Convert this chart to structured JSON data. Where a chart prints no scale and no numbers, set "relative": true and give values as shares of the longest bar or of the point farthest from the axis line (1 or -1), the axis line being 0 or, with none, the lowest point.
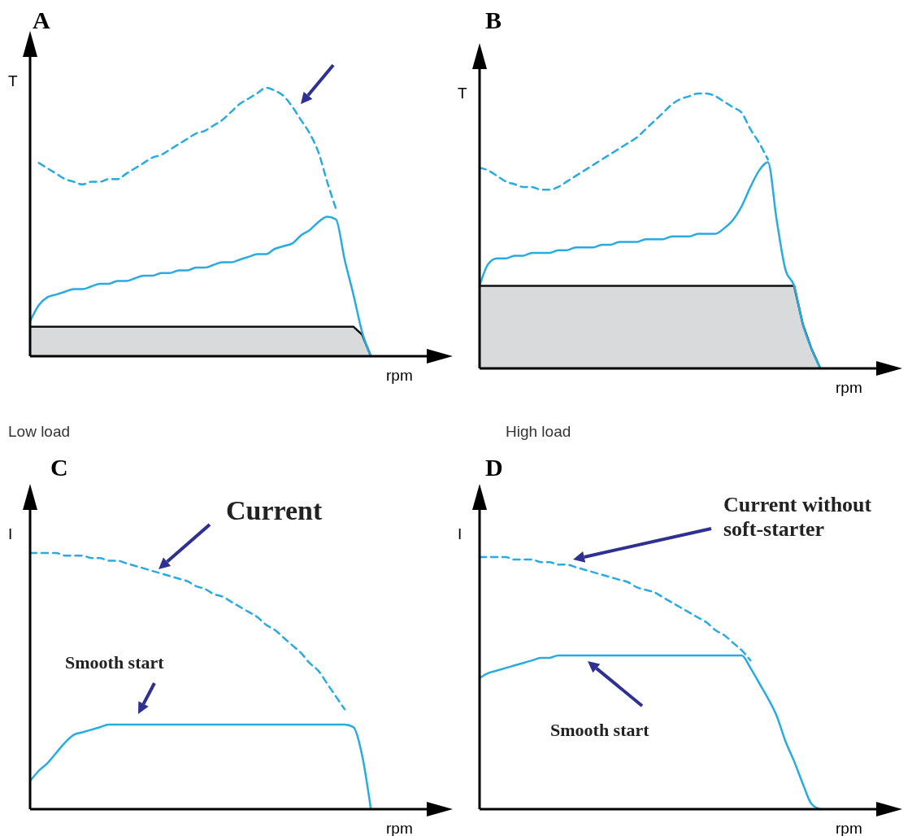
{
  "chart_data": [
    {
      "type": "line",
      "relative": true,
      "title": "A",
      "xlabel": "rpm",
      "ylabel": "T",
      "categories": [
        null,
        null,
        null,
        null,
        null,
        null,
        null,
        null,
        null,
        null,
        null,
        null,
        null,
        null,
        null,
        null,
        null,
        null,
        null,
        null,
        null,
        null,
        null,
        null,
        null,
        null,
        null,
        null,
        null,
        null,
        null,
        null,
        null,
        null,
        null,
        null,
        null,
        null,
        null,
        null,
        null,
        null,
        null,
        null,
        null
      ],
      "series": [
        {
          "type": "area",
          "color": "#d9dadb",
          "values": [
            0.11,
            0.11,
            0.11,
            0.11,
            0.11,
            0.11,
            0.11,
            0.11,
            0.11,
            0.11,
            0.11,
            0.11,
            0.11,
            0.11,
            0.11,
            0.11,
            0.11,
            0.11,
            0.11,
            0.11,
            0.11,
            0.11,
            0.11,
            0.11,
            0.11,
            0.11,
            0.11,
            0.11,
            0.11,
            0.11,
            0.11,
            0.11,
            0.11,
            0.11,
            0.11,
            0.11,
            0.11,
            0.11,
            0.08,
            0,
            null,
            null,
            null,
            null,
            null
          ]
        },
        {
          "type": "line",
          "color": "#29abe2",
          "line_style": "dashed",
          "values": [
            null,
            0.72,
            0.7,
            0.68,
            0.66,
            0.65,
            0.64,
            0.65,
            0.65,
            0.66,
            0.66,
            0.68,
            0.7,
            0.72,
            0.74,
            0.75,
            0.77,
            0.79,
            0.81,
            0.83,
            0.84,
            0.86,
            0.88,
            0.91,
            0.94,
            0.96,
            0.98,
            1,
            0.99,
            0.97,
            0.93,
            0.88,
            0.83,
            0.76,
            0.65,
            0.55,
            null,
            null,
            null,
            null,
            null,
            null,
            null,
            null,
            null
          ]
        },
        {
          "type": "line",
          "color": "#29abe2",
          "line_style": "solid",
          "values": [
            0.13,
            0.19,
            0.22,
            0.23,
            0.24,
            0.25,
            0.25,
            0.26,
            0.27,
            0.27,
            0.28,
            0.28,
            0.29,
            0.3,
            0.3,
            0.31,
            0.31,
            0.32,
            0.32,
            0.33,
            0.33,
            0.34,
            0.35,
            0.35,
            0.36,
            0.37,
            0.38,
            0.38,
            0.4,
            0.41,
            0.42,
            0.45,
            0.47,
            0.5,
            0.52,
            0.51,
            0.36,
            0.23,
            0.09,
            0,
            null,
            null,
            null,
            null,
            null
          ]
        }
      ],
      "annotations": [
        "Low load"
      ]
    },
    {
      "type": "line",
      "relative": true,
      "title": "B",
      "xlabel": "rpm",
      "ylabel": "T",
      "categories": [
        null,
        null,
        null,
        null,
        null,
        null,
        null,
        null,
        null,
        null,
        null,
        null,
        null,
        null,
        null,
        null,
        null,
        null,
        null,
        null,
        null,
        null,
        null,
        null,
        null,
        null,
        null,
        null,
        null,
        null,
        null,
        null,
        null,
        null,
        null,
        null,
        null,
        null,
        null,
        null,
        null,
        null,
        null,
        null,
        null
      ],
      "series": [
        {
          "type": "area",
          "color": "#d9dadb",
          "values": [
            0.3,
            0.3,
            0.3,
            0.3,
            0.3,
            0.3,
            0.3,
            0.3,
            0.3,
            0.3,
            0.3,
            0.3,
            0.3,
            0.3,
            0.3,
            0.3,
            0.3,
            0.3,
            0.3,
            0.3,
            0.3,
            0.3,
            0.3,
            0.3,
            0.3,
            0.3,
            0.3,
            0.3,
            0.3,
            0.3,
            0.3,
            0.3,
            0.3,
            0.3,
            0.3,
            0.3,
            0.3,
            0.16,
            0.07,
            0,
            null,
            null,
            null,
            null,
            null
          ]
        },
        {
          "type": "line",
          "color": "#29abe2",
          "line_style": "dashed",
          "values": [
            0.73,
            0.72,
            0.7,
            0.68,
            0.67,
            0.66,
            0.66,
            0.65,
            0.65,
            0.66,
            0.68,
            0.7,
            0.72,
            0.74,
            0.76,
            0.78,
            0.8,
            0.82,
            0.84,
            0.87,
            0.9,
            0.93,
            0.96,
            0.98,
            0.99,
            1,
            1,
            0.99,
            0.97,
            0.95,
            0.93,
            0.87,
            0.82,
            0.76,
            null,
            null,
            null,
            null,
            null,
            null,
            null,
            null,
            null,
            null,
            null
          ]
        },
        {
          "type": "line",
          "color": "#29abe2",
          "line_style": "solid",
          "values": [
            0.3,
            0.38,
            0.4,
            0.4,
            0.41,
            0.41,
            0.42,
            0.42,
            0.42,
            0.43,
            0.43,
            0.44,
            0.44,
            0.44,
            0.45,
            0.45,
            0.46,
            0.46,
            0.46,
            0.47,
            0.47,
            0.47,
            0.48,
            0.48,
            0.48,
            0.49,
            0.49,
            0.49,
            0.51,
            0.54,
            0.59,
            0.66,
            0.72,
            0.75,
            0.54,
            0.36,
            0.3,
            0.16,
            0.07,
            0,
            null,
            null,
            null,
            null,
            null
          ]
        }
      ],
      "annotations": [
        "High load"
      ]
    },
    {
      "type": "line",
      "relative": true,
      "title": "C",
      "xlabel": "rpm",
      "ylabel": "I",
      "categories": [
        null,
        null,
        null,
        null,
        null,
        null,
        null,
        null,
        null,
        null,
        null,
        null,
        null,
        null,
        null,
        null,
        null,
        null,
        null,
        null,
        null,
        null,
        null,
        null,
        null,
        null,
        null,
        null,
        null,
        null,
        null,
        null,
        null,
        null,
        null,
        null,
        null,
        null,
        null,
        null,
        null,
        null,
        null,
        null,
        null
      ],
      "series": [
        {
          "type": "line",
          "color": "#29abe2",
          "line_style": "dashed",
          "values": [
            1,
            1,
            1,
            1,
            0.99,
            0.99,
            0.99,
            0.98,
            0.98,
            0.97,
            0.97,
            0.96,
            0.95,
            0.94,
            0.93,
            0.92,
            0.91,
            0.9,
            0.89,
            0.87,
            0.86,
            0.84,
            0.83,
            0.81,
            0.79,
            0.77,
            0.75,
            0.72,
            0.7,
            0.67,
            0.64,
            0.61,
            0.57,
            0.54,
            0.49,
            0.44,
            0.39,
            null,
            null,
            null,
            null,
            null,
            null,
            null,
            null
          ]
        },
        {
          "type": "line",
          "color": "#29abe2",
          "line_style": "solid",
          "values": [
            0.11,
            0.15,
            0.18,
            0.22,
            0.26,
            0.29,
            0.3,
            0.31,
            0.32,
            0.33,
            0.33,
            0.33,
            0.33,
            0.33,
            0.33,
            0.33,
            0.33,
            0.33,
            0.33,
            0.33,
            0.33,
            0.33,
            0.33,
            0.33,
            0.33,
            0.33,
            0.33,
            0.33,
            0.33,
            0.33,
            0.33,
            0.33,
            0.33,
            0.33,
            0.33,
            0.33,
            0.33,
            0.32,
            0.21,
            0,
            null,
            null,
            null,
            null,
            null
          ]
        }
      ],
      "annotations": [
        "Current",
        "Smooth start"
      ]
    },
    {
      "type": "line",
      "relative": true,
      "title": "D",
      "xlabel": "rpm",
      "ylabel": "I",
      "categories": [
        null,
        null,
        null,
        null,
        null,
        null,
        null,
        null,
        null,
        null,
        null,
        null,
        null,
        null,
        null,
        null,
        null,
        null,
        null,
        null,
        null,
        null,
        null,
        null,
        null,
        null,
        null,
        null,
        null,
        null,
        null,
        null,
        null,
        null,
        null,
        null,
        null,
        null,
        null,
        null,
        null,
        null,
        null,
        null,
        null
      ],
      "series": [
        {
          "type": "line",
          "color": "#29abe2",
          "line_style": "dashed",
          "values": [
            1,
            1,
            1,
            1,
            0.99,
            0.99,
            0.99,
            0.98,
            0.98,
            0.97,
            0.97,
            0.96,
            0.95,
            0.94,
            0.93,
            0.92,
            0.91,
            0.9,
            0.88,
            0.87,
            0.86,
            0.84,
            0.82,
            0.8,
            0.78,
            0.76,
            0.74,
            0.71,
            0.69,
            0.66,
            0.63,
            0.59,
            null,
            null,
            null,
            null,
            null,
            null,
            null,
            null,
            null,
            null,
            null,
            null,
            null
          ]
        },
        {
          "type": "line",
          "color": "#29abe2",
          "line_style": "solid",
          "values": [
            0.52,
            0.54,
            0.55,
            0.56,
            0.57,
            0.58,
            0.59,
            0.6,
            0.6,
            0.61,
            0.61,
            0.61,
            0.61,
            0.61,
            0.61,
            0.61,
            0.61,
            0.61,
            0.61,
            0.61,
            0.61,
            0.61,
            0.61,
            0.61,
            0.61,
            0.61,
            0.61,
            0.61,
            0.61,
            0.61,
            0.61,
            0.56,
            0.5,
            0.44,
            0.37,
            0.27,
            0.19,
            0.1,
            0.02,
            0,
            null,
            null,
            null,
            null,
            null
          ]
        }
      ],
      "annotations": [
        "Current without soft-starter",
        "Smooth start"
      ]
    }
  ]
}
